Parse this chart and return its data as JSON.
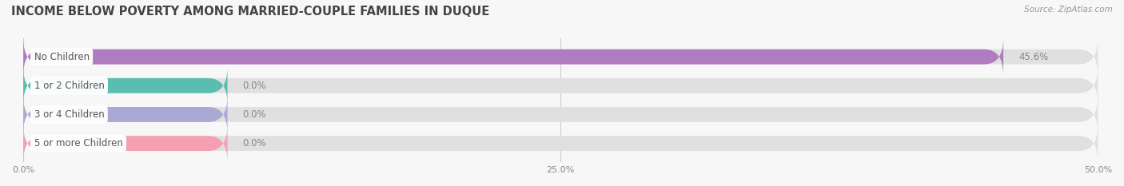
{
  "title": "INCOME BELOW POVERTY AMONG MARRIED-COUPLE FAMILIES IN DUQUE",
  "source": "Source: ZipAtlas.com",
  "categories": [
    "No Children",
    "1 or 2 Children",
    "3 or 4 Children",
    "5 or more Children"
  ],
  "values": [
    45.6,
    0.0,
    0.0,
    0.0
  ],
  "bar_colors": [
    "#b07cc0",
    "#5bbcb0",
    "#a9a9d4",
    "#f4a0b0"
  ],
  "background_color": "#f7f7f7",
  "bar_bg_color": "#e0e0e0",
  "xlim": [
    0,
    50
  ],
  "xticks": [
    0,
    25,
    50
  ],
  "xtick_labels": [
    "0.0%",
    "25.0%",
    "50.0%"
  ],
  "title_fontsize": 10.5,
  "label_fontsize": 8.5,
  "value_fontsize": 8.5,
  "bar_height": 0.52,
  "zero_bar_width": 9.5
}
